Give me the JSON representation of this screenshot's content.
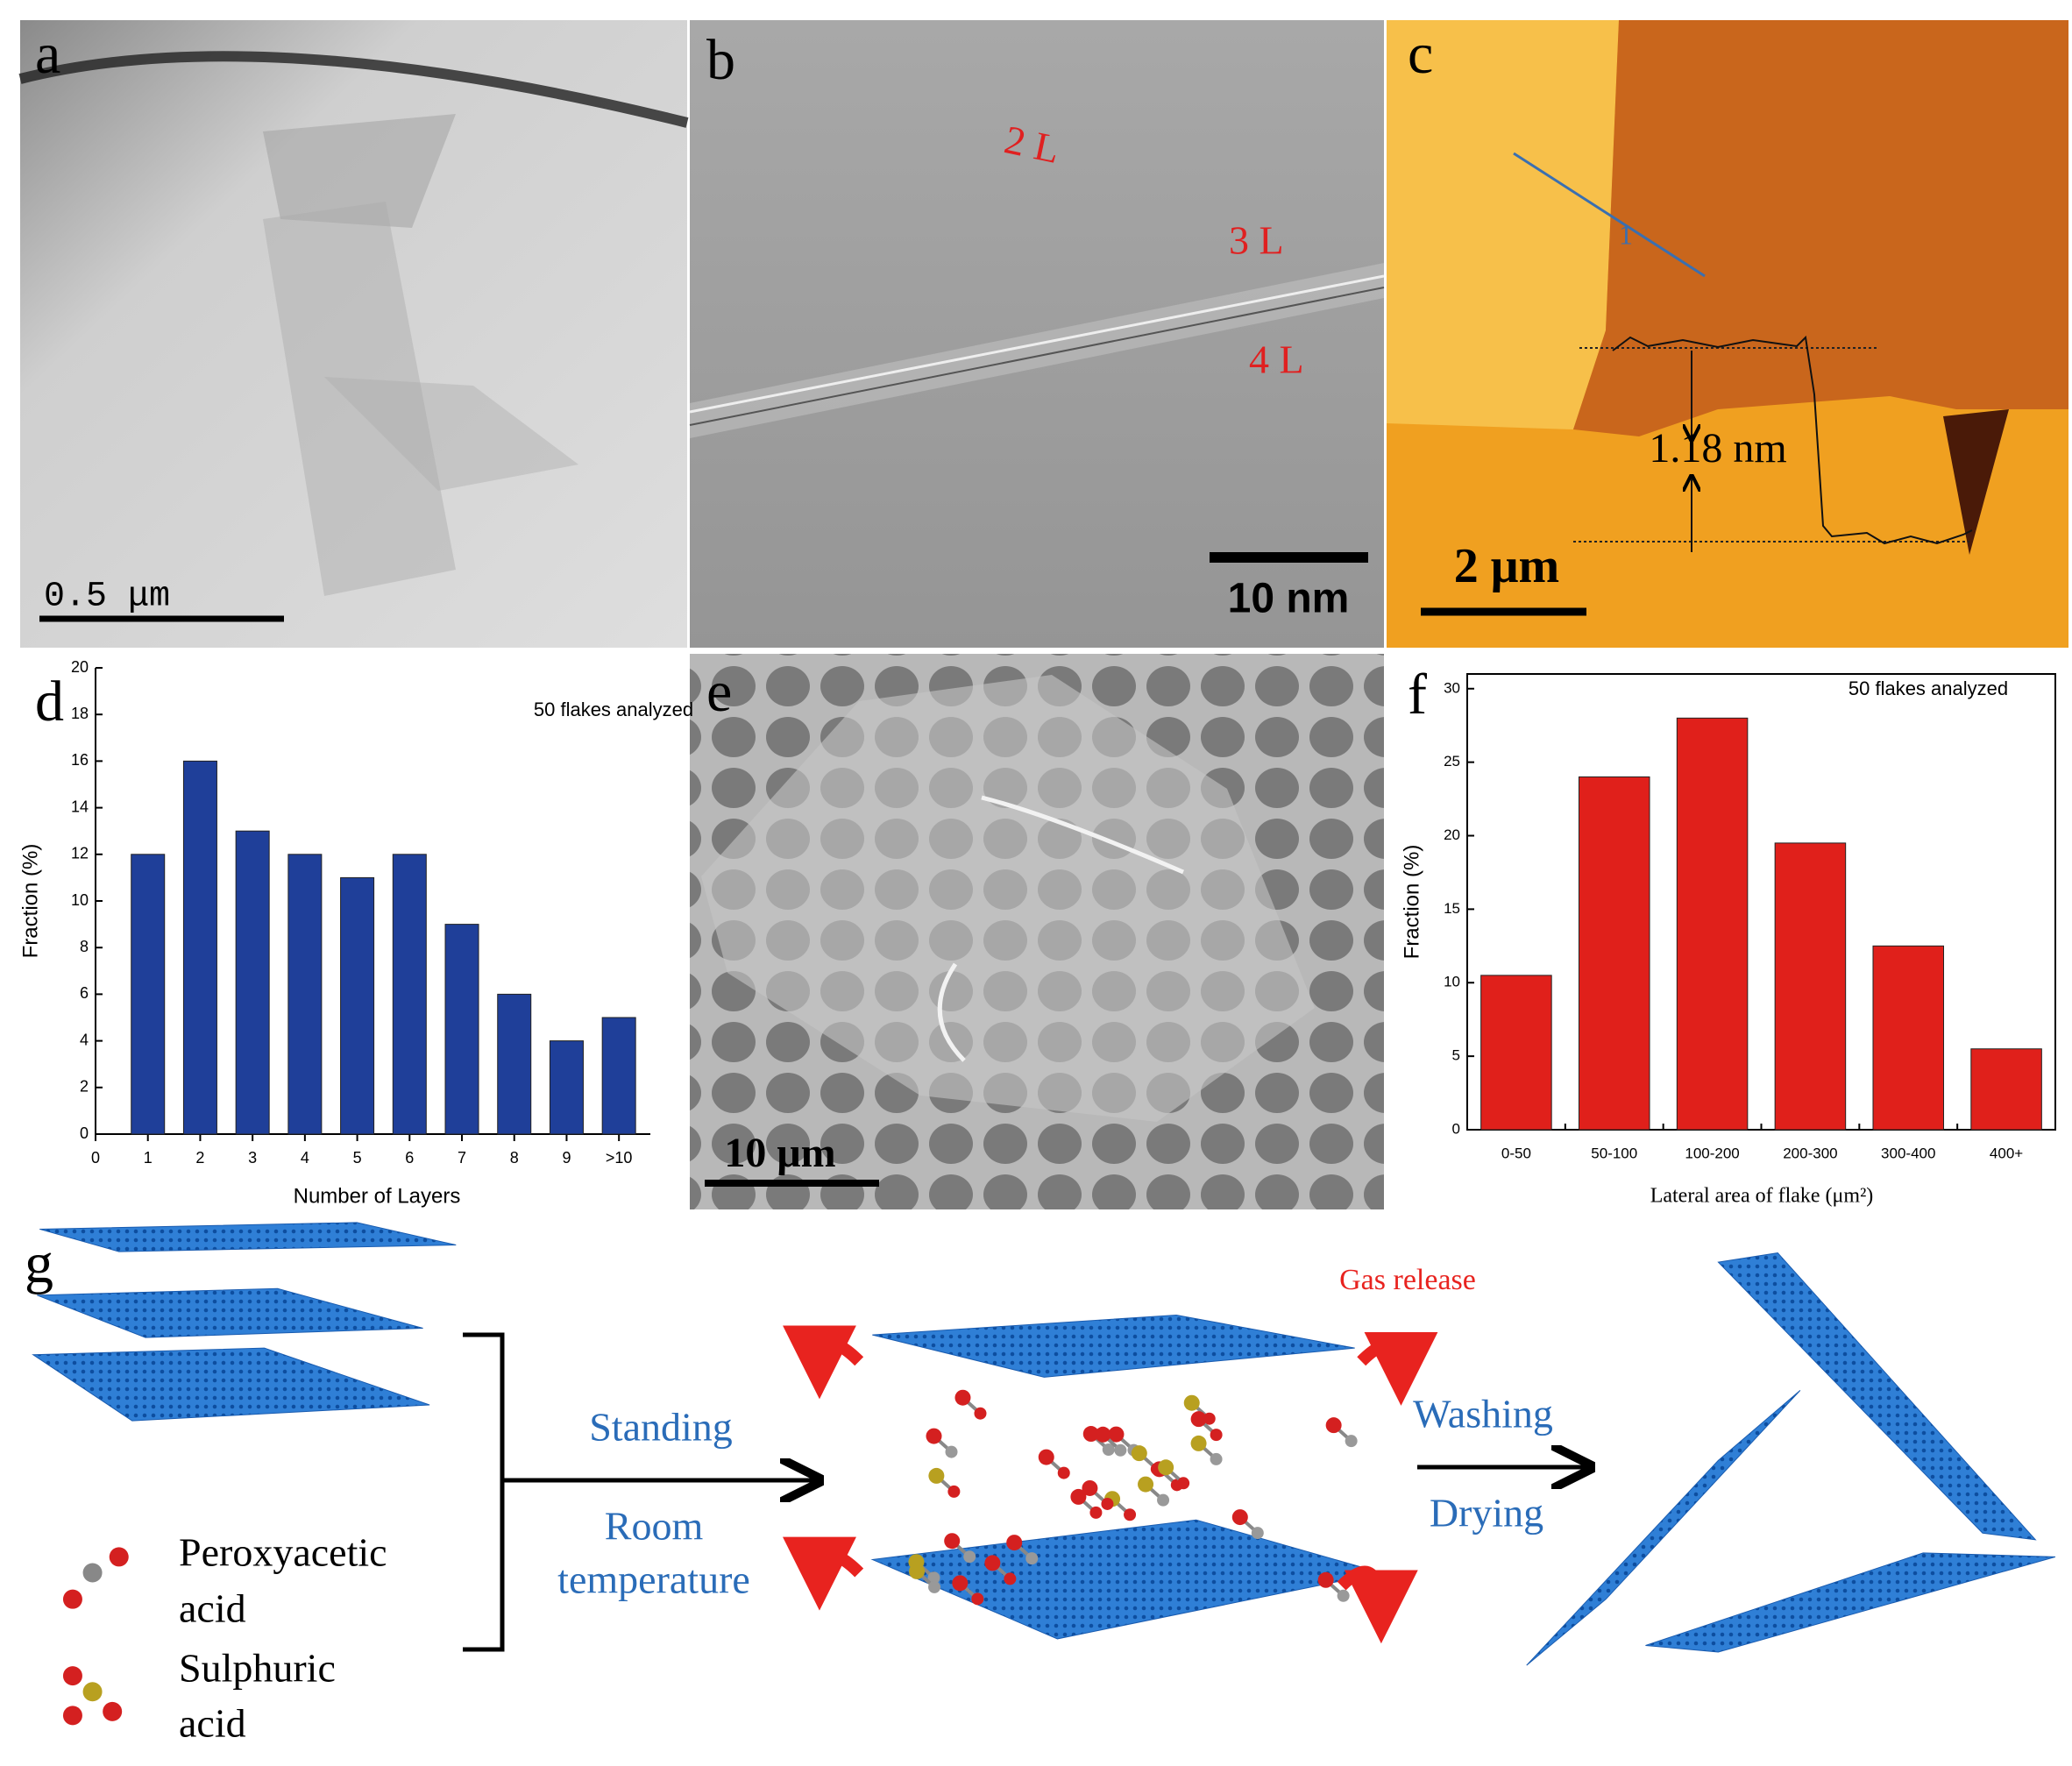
{
  "panels": {
    "a": {
      "letter": "a",
      "scale_bar": "0.5 μm"
    },
    "b": {
      "letter": "b",
      "label_2l": "2 L",
      "label_3l": "3 L",
      "label_4l": "4 L",
      "scale_bar": "10 nm"
    },
    "c": {
      "letter": "c",
      "profile_label": "1",
      "height": "1.18 nm",
      "scale_bar": "2 μm"
    },
    "d": {
      "letter": "d"
    },
    "e": {
      "letter": "e",
      "scale_bar": "10 μm"
    },
    "f": {
      "letter": "f"
    },
    "g": {
      "letter": "g",
      "gas_release": "Gas release",
      "standing": "Standing",
      "room": "Room",
      "temperature": "temperature",
      "washing": "Washing",
      "drying": "Drying",
      "legend_1_line1": "Peroxyacetic",
      "legend_1_line2": "acid",
      "legend_2_line1": "Sulphuric",
      "legend_2_line2": "acid"
    }
  },
  "chart_data": [
    {
      "type": "bar",
      "annotation": "50 flakes analyzed",
      "xlabel": "Number of Layers",
      "ylabel": "Fraction (%)",
      "x": [
        1,
        2,
        3,
        4,
        5,
        6,
        7,
        8,
        9,
        10
      ],
      "values": [
        12,
        16,
        13,
        12,
        11,
        12,
        9,
        6,
        4,
        5
      ],
      "color": "#1f3f99",
      "xlim": [
        0,
        10.6
      ],
      "xticks": [
        0,
        1,
        2,
        3,
        4,
        5,
        6,
        7,
        8,
        9,
        {
          "value": 10,
          "label": ">10"
        }
      ],
      "ylim": [
        0,
        20
      ],
      "yticks": [
        0,
        2,
        4,
        6,
        8,
        10,
        12,
        14,
        16,
        18,
        20
      ]
    },
    {
      "type": "bar",
      "annotation": "50 flakes analyzed",
      "xlabel": "Lateral area of flake (μm²)",
      "ylabel": "Fraction (%)",
      "categories": [
        "0-50",
        "50-100",
        "100-200",
        "200-300",
        "300-400",
        "400+"
      ],
      "values": [
        10.5,
        24,
        28,
        19.5,
        12.5,
        5.5
      ],
      "color": "#e0201b",
      "ylim": [
        0,
        31
      ],
      "yticks": [
        0,
        5,
        10,
        15,
        20,
        25,
        30
      ]
    }
  ]
}
